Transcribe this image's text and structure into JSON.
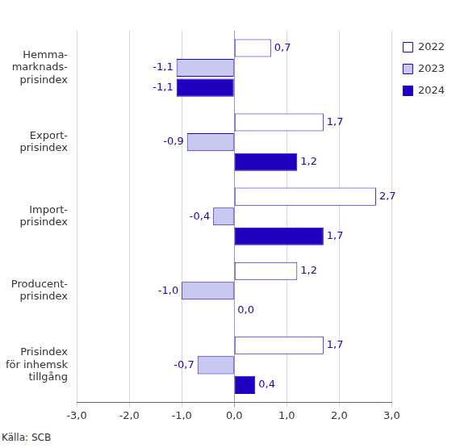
{
  "chart_data": {
    "type": "bar",
    "orientation": "horizontal",
    "categories": [
      "Hemma-\nmarknads-\nprisindex",
      "Export-\nprisindex",
      "Import-\nprisindex",
      "Producent-\nprisindex",
      "Prisindex\nför inhemsk\ntillgång"
    ],
    "series": [
      {
        "name": "2022",
        "color": "#ffffff",
        "values": [
          0.7,
          1.7,
          2.7,
          1.2,
          1.7
        ],
        "value_labels": [
          "0,7",
          "1,7",
          "2,7",
          "1,2",
          "1,7"
        ]
      },
      {
        "name": "2023",
        "color": "#c8c8f0",
        "values": [
          -1.1,
          -0.9,
          -0.4,
          -1.0,
          -0.7
        ],
        "value_labels": [
          "-1,1",
          "-0,9",
          "-0,4",
          "-1,0",
          "-0,7"
        ]
      },
      {
        "name": "2024",
        "color": "#1e00be",
        "values": [
          -1.1,
          1.2,
          1.7,
          0.0,
          0.4
        ],
        "value_labels": [
          "-1,1",
          "1,2",
          "1,7",
          "0,0",
          "0,4"
        ]
      }
    ],
    "xlim": [
      -3,
      3
    ],
    "xticks": [
      {
        "value": -3,
        "label": "-3,0"
      },
      {
        "value": -2,
        "label": "-2,0"
      },
      {
        "value": -1,
        "label": "-1,0"
      },
      {
        "value": 0,
        "label": "0,0"
      },
      {
        "value": 1,
        "label": "1,0"
      },
      {
        "value": 2,
        "label": "2,0"
      },
      {
        "value": 3,
        "label": "3,0"
      }
    ],
    "grid": true,
    "legend": "top right",
    "data_labels": true,
    "source": "Källa: SCB"
  }
}
